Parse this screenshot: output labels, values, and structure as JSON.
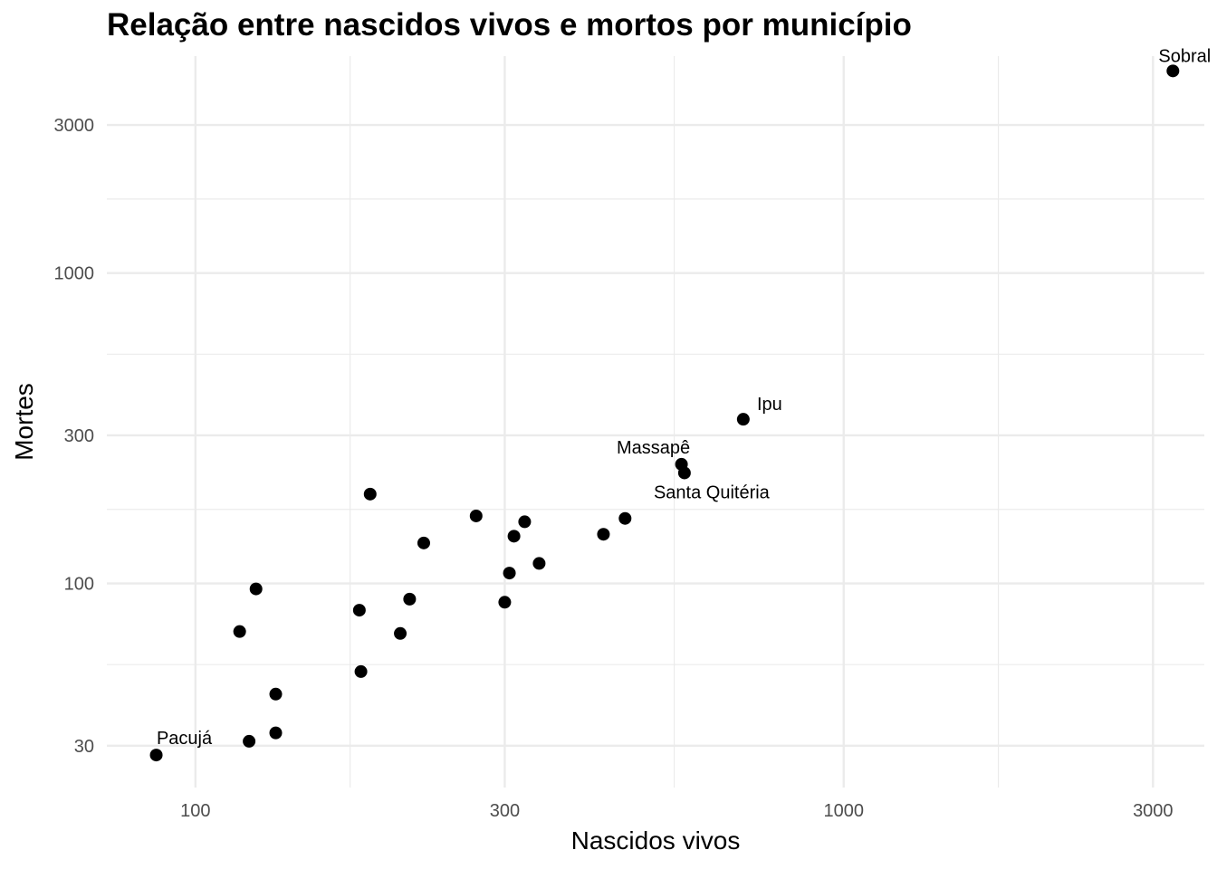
{
  "chart_data": {
    "type": "scatter",
    "title": "Relação entre nascidos vivos e mortos por município",
    "xlabel": "Nascidos vivos",
    "ylabel": "Mortes",
    "xscale": "log10",
    "yscale": "log10",
    "xlim": [
      73,
      3600
    ],
    "ylim": [
      22,
      5000
    ],
    "xticks": [
      100,
      300,
      1000,
      3000
    ],
    "xtick_labels": [
      "100",
      "300",
      "1000",
      "3000"
    ],
    "yticks": [
      30,
      100,
      300,
      1000,
      3000
    ],
    "ytick_labels": [
      "30",
      "100",
      "300",
      "1000",
      "3000"
    ],
    "grid": true,
    "point_color": "#000000",
    "points": [
      {
        "x": 3220,
        "y": 4480,
        "label": "Sobral"
      },
      {
        "x": 700,
        "y": 338,
        "label": "Ipu"
      },
      {
        "x": 562,
        "y": 242,
        "label": "Massapê"
      },
      {
        "x": 568,
        "y": 227,
        "label": "Santa Quitéria"
      },
      {
        "x": 87,
        "y": 28,
        "label": "Pacujá"
      },
      {
        "x": 460,
        "y": 162,
        "label": ""
      },
      {
        "x": 426,
        "y": 144,
        "label": ""
      },
      {
        "x": 339,
        "y": 116,
        "label": ""
      },
      {
        "x": 322,
        "y": 158,
        "label": ""
      },
      {
        "x": 310,
        "y": 142,
        "label": ""
      },
      {
        "x": 305,
        "y": 108,
        "label": ""
      },
      {
        "x": 300,
        "y": 87,
        "label": ""
      },
      {
        "x": 271,
        "y": 165,
        "label": ""
      },
      {
        "x": 225,
        "y": 135,
        "label": ""
      },
      {
        "x": 214,
        "y": 89,
        "label": ""
      },
      {
        "x": 207,
        "y": 69,
        "label": ""
      },
      {
        "x": 186,
        "y": 194,
        "label": ""
      },
      {
        "x": 180,
        "y": 52,
        "label": ""
      },
      {
        "x": 179,
        "y": 82,
        "label": ""
      },
      {
        "x": 124,
        "y": 96,
        "label": ""
      },
      {
        "x": 117,
        "y": 70,
        "label": ""
      },
      {
        "x": 133,
        "y": 44,
        "label": ""
      },
      {
        "x": 133,
        "y": 33,
        "label": ""
      },
      {
        "x": 121,
        "y": 31,
        "label": ""
      }
    ]
  }
}
